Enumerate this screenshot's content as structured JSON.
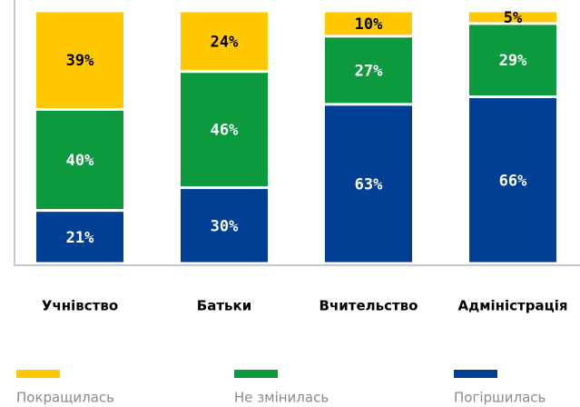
{
  "chart_data": {
    "type": "stacked_bar",
    "categories": [
      "Учнівство",
      "Батьки",
      "Вчительство",
      "Адміністрація"
    ],
    "series": [
      {
        "name": "Погіршилась",
        "color": "#003f94",
        "values": [
          21,
          30,
          63,
          66
        ],
        "value_labels": [
          "21%",
          "30%",
          "63%",
          "66%"
        ]
      },
      {
        "name": "Не змінилась",
        "color": "#0d9a3e",
        "values": [
          40,
          46,
          27,
          29
        ],
        "value_labels": [
          "40%",
          "46%",
          "27%",
          "29%"
        ]
      },
      {
        "name": "Покращилась",
        "color": "#ffc800",
        "values": [
          39,
          24,
          10,
          5
        ],
        "value_labels": [
          "39%",
          "24%",
          "10%",
          "5%"
        ]
      }
    ],
    "ylim": [
      0,
      100
    ],
    "legend": "bottom"
  }
}
